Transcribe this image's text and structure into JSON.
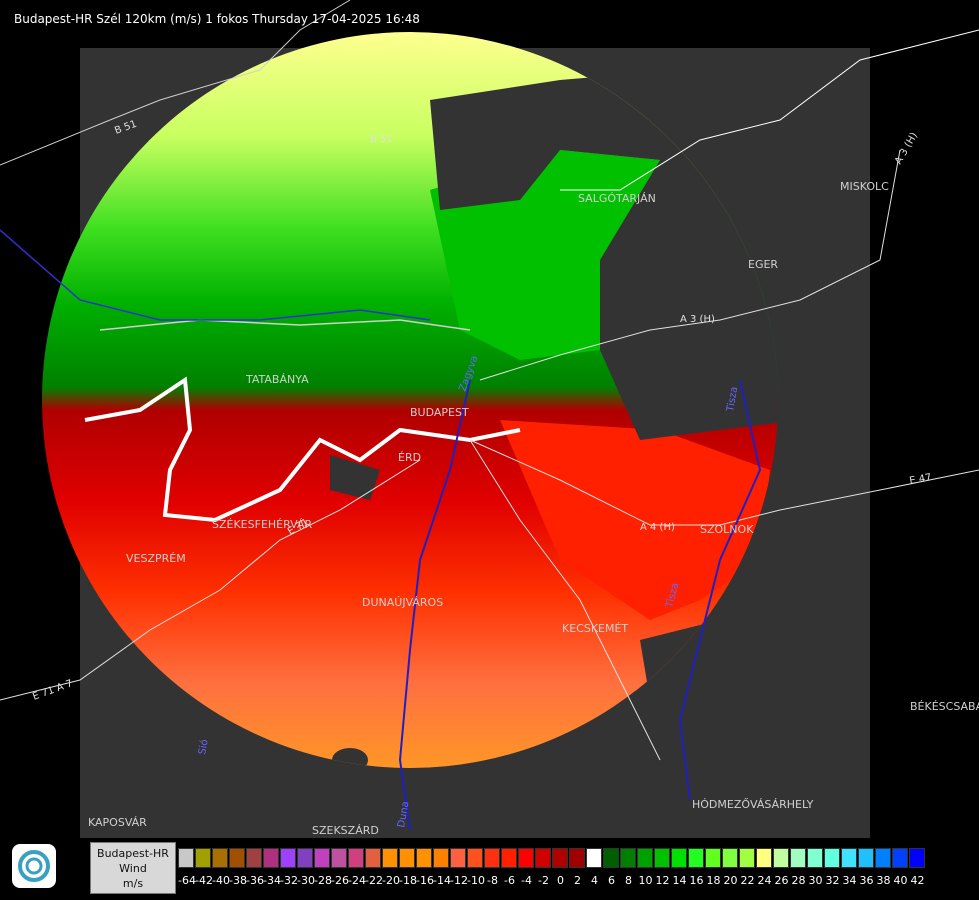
{
  "title": "Budapest-HR Szél 120km (m/s) 1 fokos Thursday 17-04-2025 16:48",
  "cities": [
    {
      "name": "SALGÓTARJÁN"
    },
    {
      "name": "MISKOLC"
    },
    {
      "name": "EGER"
    },
    {
      "name": "TATABÁNYA"
    },
    {
      "name": "BUDAPEST"
    },
    {
      "name": "ÉRD"
    },
    {
      "name": "SZÉKESFEHÉRVÁR"
    },
    {
      "name": "VESZPRÉM"
    },
    {
      "name": "DUNAÚJVÁROS"
    },
    {
      "name": "KECSKEMÉT"
    },
    {
      "name": "SZOLNOK"
    },
    {
      "name": "BÉKÉSCSABA"
    },
    {
      "name": "HÓDMEZŐVÁSÁRHELY"
    },
    {
      "name": "KAPOSVÁR"
    },
    {
      "name": "SZEKSZÁRD"
    }
  ],
  "roads": [
    "B 51",
    "B 51",
    "A 3 (H)",
    "A 3 (H)",
    "A 4 (H)",
    "E 71 A 7",
    "E 71",
    "E 47"
  ],
  "rivers": [
    "Duna",
    "Sió",
    "Tisza",
    "Zagyva",
    "Tisza"
  ],
  "legend": {
    "line1": "Budapest-HR",
    "line2": "Wind",
    "line3": "m/s",
    "colors": [
      "#c8c8c8",
      "#a0a000",
      "#a87000",
      "#a05000",
      "#a04040",
      "#b03080",
      "#a040ff",
      "#8040c0",
      "#c040c0",
      "#c050a0",
      "#d04080",
      "#e06040",
      "#ff9000",
      "#ff9000",
      "#ff9000",
      "#ff8000",
      "#ff6040",
      "#ff5020",
      "#ff3010",
      "#ff2000",
      "#ff0000",
      "#d00000",
      "#b00000",
      "#a00000",
      "#ffffff",
      "#006000",
      "#008000",
      "#00a000",
      "#00c000",
      "#00e000",
      "#20ff20",
      "#60ff20",
      "#80ff40",
      "#a0ff40",
      "#ffff80",
      "#c0ffa0",
      "#a0ffc0",
      "#80ffd0",
      "#60ffe0",
      "#40e0ff",
      "#20c0ff",
      "#0080ff",
      "#0040ff",
      "#0000ff"
    ],
    "ticks": [
      "-64",
      "-42",
      "-40",
      "-38",
      "-36",
      "-34",
      "-32",
      "-30",
      "-28",
      "-26",
      "-24",
      "-22",
      "-20",
      "-18",
      "-16",
      "-14",
      "-12",
      "-10",
      "-8",
      "-6",
      "-4",
      "-2",
      "0",
      "2",
      "4",
      "6",
      "8",
      "10",
      "12",
      "14",
      "16",
      "18",
      "20",
      "22",
      "24",
      "26",
      "28",
      "30",
      "32",
      "34",
      "36",
      "38",
      "40",
      "42"
    ]
  }
}
